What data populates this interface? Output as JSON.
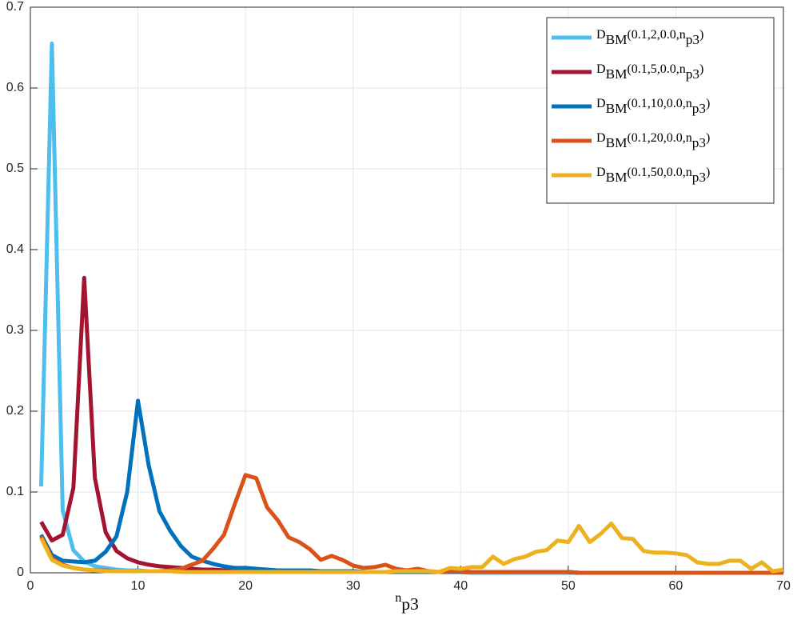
{
  "chart_data": {
    "type": "line",
    "xlabel": "n_{p3}",
    "x": [
      1,
      2,
      3,
      4,
      5,
      6,
      7,
      8,
      9,
      10,
      11,
      12,
      13,
      14,
      15,
      16,
      17,
      18,
      19,
      20,
      21,
      22,
      23,
      24,
      25,
      26,
      27,
      28,
      29,
      30,
      31,
      32,
      33,
      34,
      35,
      36,
      37,
      38,
      39,
      40,
      41,
      42,
      43,
      44,
      45,
      46,
      47,
      48,
      49,
      50,
      51,
      52,
      53,
      54,
      55,
      56,
      57,
      58,
      59,
      60,
      61,
      62,
      63,
      64,
      65,
      66,
      67,
      68,
      69,
      70
    ],
    "series": [
      {
        "name": "D_{BM}(0.1,2,0.0,n_{p3})",
        "color": "#4DBEEE",
        "values": [
          0.107,
          0.655,
          0.077,
          0.028,
          0.014,
          0.008,
          0.006,
          0.004,
          0.003,
          0.003,
          0.002,
          0.002,
          0.002,
          0.002,
          0.002,
          0.002,
          0.002,
          0.002,
          0.002,
          0.002,
          0.001,
          0.001,
          0.001,
          0.001,
          0.001,
          0.001,
          0.001,
          0.001,
          0.001,
          0.001,
          0.001,
          0.001,
          0.001,
          0.001,
          0.001,
          0.001,
          0.001,
          0.001,
          0.001,
          0.001,
          0,
          0,
          0,
          0,
          0,
          0,
          0,
          0,
          0,
          0,
          0,
          0,
          0,
          0,
          0,
          0,
          0,
          0,
          0,
          0,
          0,
          0,
          0,
          0,
          0,
          0,
          0,
          0,
          0,
          0
        ]
      },
      {
        "name": "D_{BM}(0.1,5,0.0,n_{p3})",
        "color": "#A2142F",
        "values": [
          0.063,
          0.04,
          0.047,
          0.105,
          0.365,
          0.117,
          0.05,
          0.027,
          0.018,
          0.013,
          0.01,
          0.008,
          0.007,
          0.006,
          0.005,
          0.004,
          0.004,
          0.003,
          0.003,
          0.003,
          0.002,
          0.002,
          0.002,
          0.002,
          0.002,
          0.002,
          0.002,
          0.002,
          0.002,
          0.002,
          0.001,
          0.001,
          0.001,
          0.001,
          0.001,
          0.001,
          0.001,
          0.001,
          0.001,
          0.001,
          0.001,
          0.001,
          0.001,
          0.001,
          0.001,
          0.001,
          0.001,
          0.001,
          0.001,
          0.001,
          0,
          0,
          0,
          0,
          0,
          0,
          0,
          0,
          0,
          0,
          0,
          0,
          0,
          0,
          0,
          0,
          0,
          0,
          0,
          0
        ]
      },
      {
        "name": "D_{BM}(0.1,10,0.0,n_{p3})",
        "color": "#0072BD",
        "values": [
          0.047,
          0.022,
          0.015,
          0.014,
          0.013,
          0.015,
          0.026,
          0.045,
          0.1,
          0.213,
          0.133,
          0.076,
          0.052,
          0.033,
          0.02,
          0.015,
          0.011,
          0.008,
          0.006,
          0.006,
          0.005,
          0.004,
          0.003,
          0.003,
          0.003,
          0.003,
          0.002,
          0.002,
          0.002,
          0.002,
          0.001,
          0.001,
          0.001,
          0.001,
          0.001,
          0.001,
          0.001,
          0.001,
          0.001,
          0.001,
          0.001,
          0.001,
          0.001,
          0.001,
          0.001,
          0.001,
          0.001,
          0.001,
          0.001,
          0.001,
          0,
          0,
          0,
          0,
          0,
          0,
          0,
          0,
          0,
          0,
          0,
          0,
          0,
          0,
          0,
          0,
          0,
          0,
          0,
          0
        ]
      },
      {
        "name": "D_{BM}(0.1,20,0.0,n_{p3})",
        "color": "#D95319",
        "values": [
          0.045,
          0.018,
          0.01,
          0.006,
          0.004,
          0.003,
          0.003,
          0.002,
          0.002,
          0.002,
          0.002,
          0.002,
          0.003,
          0.005,
          0.01,
          0.015,
          0.03,
          0.047,
          0.085,
          0.121,
          0.117,
          0.081,
          0.065,
          0.044,
          0.038,
          0.029,
          0.016,
          0.021,
          0.016,
          0.009,
          0.006,
          0.007,
          0.01,
          0.005,
          0.003,
          0.005,
          0.002,
          0.001,
          0.002,
          0.002,
          0.001,
          0.001,
          0.001,
          0.001,
          0.001,
          0.001,
          0.001,
          0.001,
          0.001,
          0.001,
          0,
          0,
          0,
          0,
          0,
          0,
          0,
          0,
          0,
          0,
          0,
          0,
          0,
          0,
          0,
          0,
          0,
          0,
          0,
          0
        ]
      },
      {
        "name": "D_{BM}(0.1,50,0.0,n_{p3})",
        "color": "#EDB120",
        "values": [
          0.043,
          0.016,
          0.009,
          0.006,
          0.004,
          0.003,
          0.002,
          0.002,
          0.002,
          0.002,
          0.002,
          0.002,
          0.002,
          0.001,
          0.001,
          0.001,
          0.001,
          0.001,
          0.001,
          0.001,
          0.001,
          0.001,
          0.001,
          0.001,
          0.001,
          0.001,
          0.001,
          0.001,
          0.001,
          0.001,
          0.001,
          0.001,
          0.001,
          0.002,
          0.002,
          0.002,
          0.002,
          0.001,
          0.006,
          0.005,
          0.007,
          0.007,
          0.02,
          0.011,
          0.017,
          0.02,
          0.026,
          0.028,
          0.04,
          0.038,
          0.058,
          0.038,
          0.048,
          0.061,
          0.043,
          0.042,
          0.027,
          0.025,
          0.025,
          0.024,
          0.022,
          0.013,
          0.011,
          0.011,
          0.015,
          0.015,
          0.005,
          0.013,
          0.002,
          0.004
        ]
      }
    ],
    "xlim": [
      0,
      70
    ],
    "xticks": [
      0,
      10,
      20,
      30,
      40,
      50,
      60,
      70
    ],
    "ylim": [
      0,
      0.7
    ],
    "yticks": [
      0,
      0.1,
      0.2,
      0.3,
      0.4,
      0.5,
      0.6,
      0.7
    ],
    "grid": true,
    "legend": "top-right"
  }
}
